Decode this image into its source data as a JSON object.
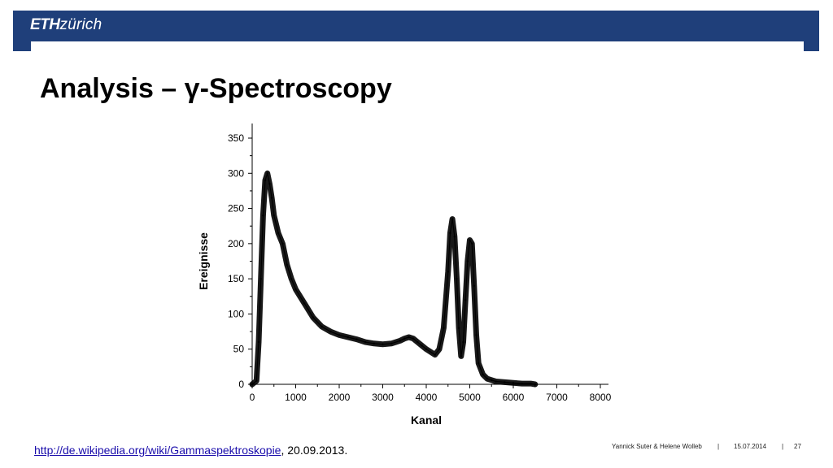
{
  "header": {
    "logo_bold": "ETH",
    "logo_light": "zürich"
  },
  "slide": {
    "title": "Analysis – γ-Spectroscopy"
  },
  "source": {
    "link_text": "http://de.wikipedia.org/wiki/Gammaspektroskopie",
    "suffix": ", 20.09.2013."
  },
  "footer": {
    "authors": "Yannick Suter & Helene Wolleb",
    "separator": "|",
    "date": "15.07.2014",
    "page": "27"
  },
  "colors": {
    "banner": "#1f3f7a",
    "line": "#000000"
  },
  "chart_data": {
    "type": "line",
    "title": "",
    "xlabel": "Kanal",
    "ylabel": "Ereignisse",
    "xlim": [
      0,
      8000
    ],
    "ylim": [
      0,
      350
    ],
    "xticks": [
      0,
      1000,
      2000,
      3000,
      4000,
      5000,
      6000,
      7000,
      8000
    ],
    "yticks": [
      0,
      50,
      100,
      150,
      200,
      250,
      300,
      350
    ],
    "grid": false,
    "series": [
      {
        "x": [
          0,
          100,
          150,
          200,
          250,
          300,
          350,
          400,
          450,
          500,
          600,
          700,
          800,
          900,
          1000,
          1200,
          1400,
          1600,
          1800,
          2000,
          2200,
          2400,
          2600,
          2800,
          3000,
          3200,
          3400,
          3500,
          3600,
          3700,
          3800,
          3900,
          4000,
          4200,
          4300,
          4400,
          4500,
          4550,
          4600,
          4650,
          4700,
          4750,
          4800,
          4850,
          4900,
          4950,
          5000,
          5050,
          5100,
          5150,
          5200,
          5300,
          5400,
          5500,
          5600,
          5800,
          6000,
          6200,
          6400,
          6500
        ],
        "y": [
          0,
          5,
          60,
          150,
          240,
          290,
          300,
          285,
          265,
          240,
          215,
          200,
          170,
          150,
          135,
          115,
          95,
          82,
          75,
          70,
          67,
          64,
          60,
          58,
          57,
          58,
          62,
          65,
          67,
          65,
          60,
          55,
          50,
          42,
          50,
          80,
          160,
          215,
          235,
          210,
          150,
          80,
          40,
          60,
          120,
          175,
          205,
          200,
          140,
          70,
          30,
          14,
          8,
          6,
          4,
          3,
          2,
          1,
          1,
          0
        ]
      }
    ]
  }
}
